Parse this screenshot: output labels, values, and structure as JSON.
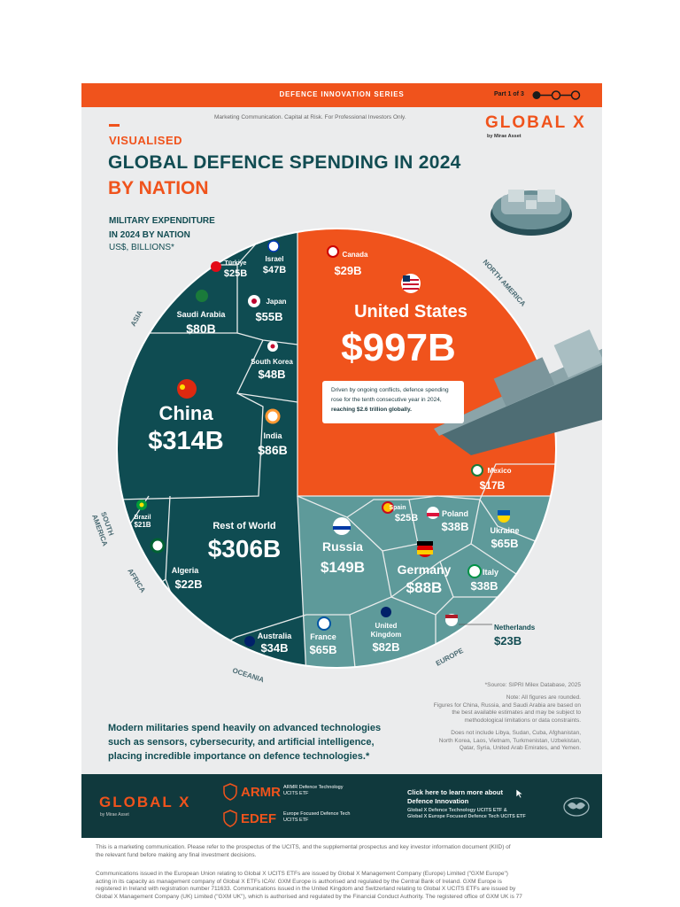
{
  "header": {
    "series": "DEFENCE INNOVATION SERIES",
    "part": "Part 1 of 3"
  },
  "marketing_note": "Marketing Communication. Capital at Risk. For Professional Investors Only.",
  "brand": {
    "logo": "GLOBAL X",
    "byline": "by Mirae Asset"
  },
  "title": {
    "kicker": "VISUALISED",
    "line1": "GLOBAL DEFENCE SPENDING IN 2024",
    "line2": "BY NATION"
  },
  "subtitle": {
    "line1": "MILITARY EXPENDITURE",
    "line2": "IN 2024 BY NATION",
    "line3": "US$, BILLIONS*"
  },
  "regions": {
    "asia": "ASIA",
    "north_america": "NORTH AMERICA",
    "south_america_1": "SOUTH",
    "south_america_2": "AMERICA",
    "africa": "AFRICA",
    "oceania": "OCEANIA",
    "europe": "EUROPE"
  },
  "countries": [
    {
      "name": "United States",
      "value": "$997B"
    },
    {
      "name": "Canada",
      "value": "$29B"
    },
    {
      "name": "Mexico",
      "value": "$17B"
    },
    {
      "name": "China",
      "value": "$314B"
    },
    {
      "name": "Saudi Arabia",
      "value": "$80B"
    },
    {
      "name": "Türkiye",
      "value": "$25B"
    },
    {
      "name": "Israel",
      "value": "$47B"
    },
    {
      "name": "Japan",
      "value": "$55B"
    },
    {
      "name": "South Korea",
      "value": "$48B"
    },
    {
      "name": "India",
      "value": "$86B"
    },
    {
      "name": "Brazil",
      "value": "$21B"
    },
    {
      "name": "Rest of World",
      "value": "$306B"
    },
    {
      "name": "Algeria",
      "value": "$22B"
    },
    {
      "name": "Australia",
      "value": "$34B"
    },
    {
      "name": "Russia",
      "value": "$149B"
    },
    {
      "name": "Spain",
      "value": "$25B"
    },
    {
      "name": "Poland",
      "value": "$38B"
    },
    {
      "name": "Ukraine",
      "value": "$65B"
    },
    {
      "name": "Germany",
      "value": "$88B"
    },
    {
      "name": "Italy",
      "value": "$38B"
    },
    {
      "name": "France",
      "value": "$65B"
    },
    {
      "name": "United Kingdom",
      "value": "$82B"
    },
    {
      "name": "Netherlands",
      "value": "$23B"
    }
  ],
  "callout": {
    "line1": "Driven by ongoing conflicts, defence spending",
    "line2": "rose for the tenth consecutive year in 2024,",
    "line3": "reaching $2.6 trillion globally."
  },
  "source": "*Source: SIPRI Milex Database, 2025",
  "notes": [
    "Note: All figures are rounded.",
    "Figures for China, Russia, and Saudi Arabia are based on",
    "the best available estimates and may be subject to",
    "methodological limitations or data constraints.",
    "",
    "Does not include Libya, Sudan, Cuba, Afghanistan,",
    "North Korea, Laos, Vietnam, Turkmenistan, Uzbekistan,",
    "Qatar, Syria, United Arab Emirates, and Yemen."
  ],
  "tagline": {
    "line1": "Modern militaries spend heavily on advanced technologies",
    "line2": "such as sensors, cybersecurity, and artificial intelligence,",
    "line3": "placing incredible importance on defence technologies.*"
  },
  "footer": {
    "logo": "GLOBAL X",
    "byline": "by Mirae Asset",
    "funds": [
      {
        "ticker": "ARMR",
        "name1": "ARMR Defence Technology",
        "name2": "UCITS ETF"
      },
      {
        "ticker": "EDEF",
        "name1": "Europe Focused Defence Tech",
        "name2": "UCITS ETF"
      }
    ],
    "cta_line1": "Click here to learn more about",
    "cta_line2": "Defence Innovation",
    "cta_sub1": "Global X Defence Technology UCITS ETF &",
    "cta_sub2": "Global X Europe Focused Defence Tech UCITS ETF"
  },
  "legal": [
    "This is a marketing communication. Please refer to the prospectus of the UCITS, and the supplemental prospectus and key investor information document (KIID) of",
    "the relevant fund before making any final investment decisions.",
    "Communications issued in the European Union relating to Global X UCITS ETFs are issued by Global X Management Company (Europe) Limited (\"GXM Europe\")",
    "acting in its capacity as management company of Global X ETFs ICAV. GXM Europe is authorised and regulated by the Central Bank of Ireland. GXM Europe is",
    "registered in Ireland with registration number 711633. Communications issued in the United Kingdom and Switzerland relating to Global X UCITS ETFs are issued by",
    "Global X Management Company (UK) Limited (\"GXM UK\"), which is authorised and regulated by the Financial Conduct Authority. The registered office of GXM UK is 77"
  ],
  "colors": {
    "orange": "#f0531c",
    "dark_teal": "#0f4c52",
    "light_teal": "#5e9a9a",
    "bg": "#ebeced"
  }
}
